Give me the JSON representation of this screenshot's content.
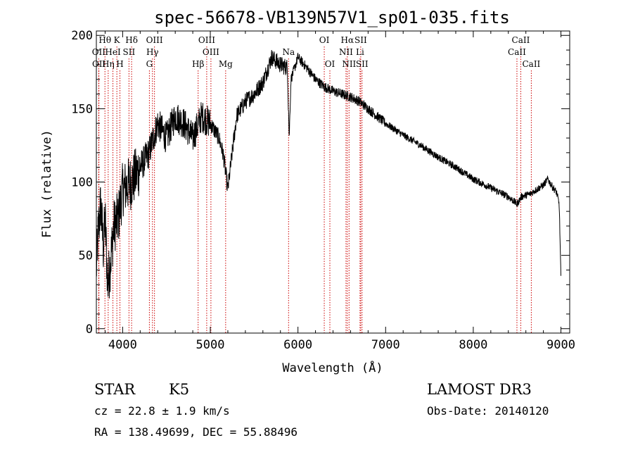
{
  "chart_data": {
    "type": "line",
    "title": "spec-56678-VB139N57V1_sp01-035.fits",
    "xlabel": "Wavelength (Å)",
    "ylabel": "Flux (relative)",
    "xlim": [
      3700,
      9100
    ],
    "ylim": [
      -3,
      203
    ],
    "xticks": [
      4000,
      5000,
      6000,
      7000,
      8000,
      9000
    ],
    "yticks": [
      0,
      50,
      100,
      150,
      200
    ],
    "spectrum_anchors": [
      [
        3700,
        40
      ],
      [
        3720,
        65
      ],
      [
        3750,
        85
      ],
      [
        3780,
        55
      ],
      [
        3800,
        75
      ],
      [
        3830,
        30
      ],
      [
        3860,
        45
      ],
      [
        3900,
        70
      ],
      [
        3950,
        75
      ],
      [
        4000,
        95
      ],
      [
        4100,
        100
      ],
      [
        4200,
        110
      ],
      [
        4300,
        120
      ],
      [
        4400,
        140
      ],
      [
        4500,
        130
      ],
      [
        4600,
        145
      ],
      [
        4700,
        140
      ],
      [
        4800,
        130
      ],
      [
        4900,
        145
      ],
      [
        5000,
        140
      ],
      [
        5100,
        130
      ],
      [
        5150,
        118
      ],
      [
        5200,
        95
      ],
      [
        5300,
        145
      ],
      [
        5400,
        155
      ],
      [
        5500,
        160
      ],
      [
        5600,
        168
      ],
      [
        5700,
        185
      ],
      [
        5800,
        180
      ],
      [
        5880,
        178
      ],
      [
        5900,
        130
      ],
      [
        5920,
        170
      ],
      [
        6000,
        185
      ],
      [
        6100,
        178
      ],
      [
        6200,
        170
      ],
      [
        6300,
        165
      ],
      [
        6400,
        162
      ],
      [
        6500,
        160
      ],
      [
        6600,
        158
      ],
      [
        6700,
        155
      ],
      [
        6800,
        150
      ],
      [
        6900,
        145
      ],
      [
        7000,
        140
      ],
      [
        7200,
        132
      ],
      [
        7400,
        125
      ],
      [
        7600,
        117
      ],
      [
        7800,
        110
      ],
      [
        8000,
        102
      ],
      [
        8200,
        96
      ],
      [
        8400,
        90
      ],
      [
        8500,
        85
      ],
      [
        8550,
        90
      ],
      [
        8650,
        92
      ],
      [
        8700,
        94
      ],
      [
        8800,
        98
      ],
      [
        8850,
        102
      ],
      [
        8900,
        97
      ],
      [
        8950,
        93
      ],
      [
        8980,
        85
      ],
      [
        9000,
        35
      ]
    ],
    "spectral_lines": [
      {
        "label": "Hθ",
        "wavelength": 3798,
        "row": 0
      },
      {
        "label": "OII",
        "wavelength": 3727,
        "row": 1
      },
      {
        "label": "OII",
        "wavelength": 3729,
        "row": 2
      },
      {
        "label": "Hη",
        "wavelength": 3835,
        "row": 2
      },
      {
        "label": "K",
        "wavelength": 3934,
        "row": 0
      },
      {
        "label": "HeI",
        "wavelength": 3889,
        "row": 1
      },
      {
        "label": "H",
        "wavelength": 3969,
        "row": 2
      },
      {
        "label": "SII",
        "wavelength": 4072,
        "row": 1
      },
      {
        "label": "Hδ",
        "wavelength": 4102,
        "row": 0
      },
      {
        "label": "OIII",
        "wavelength": 4363,
        "row": 0
      },
      {
        "label": "Hγ",
        "wavelength": 4340,
        "row": 1
      },
      {
        "label": "G",
        "wavelength": 4305,
        "row": 2
      },
      {
        "label": "OIII",
        "wavelength": 4959,
        "row": 0
      },
      {
        "label": "OIII",
        "wavelength": 5007,
        "row": 1
      },
      {
        "label": "Hβ",
        "wavelength": 4861,
        "row": 2
      },
      {
        "label": "Mg",
        "wavelength": 5175,
        "row": 2
      },
      {
        "label": "Na",
        "wavelength": 5893,
        "row": 1
      },
      {
        "label": "OI",
        "wavelength": 6300,
        "row": 0
      },
      {
        "label": "OI",
        "wavelength": 6364,
        "row": 2
      },
      {
        "label": "Hα",
        "wavelength": 6563,
        "row": 0
      },
      {
        "label": "NII",
        "wavelength": 6548,
        "row": 1
      },
      {
        "label": "NII",
        "wavelength": 6583,
        "row": 2
      },
      {
        "label": "SII",
        "wavelength": 6716,
        "row": 0
      },
      {
        "label": "Li",
        "wavelength": 6708,
        "row": 1
      },
      {
        "label": "SII",
        "wavelength": 6731,
        "row": 2
      },
      {
        "label": "CaII",
        "wavelength": 8542,
        "row": 0
      },
      {
        "label": "CaII",
        "wavelength": 8498,
        "row": 1
      },
      {
        "label": "CaII",
        "wavelength": 8662,
        "row": 2
      }
    ]
  },
  "footer": {
    "class": "STAR",
    "subclass": "K5",
    "redshift": "cz = 22.8 ± 1.9 km/s",
    "coords": "RA = 138.49699, DEC =  55.88496",
    "survey": "LAMOST DR3",
    "obs_date": "Obs-Date: 20140120"
  },
  "colors": {
    "spectrum": "#000000",
    "line_marker": "#cc0000"
  }
}
